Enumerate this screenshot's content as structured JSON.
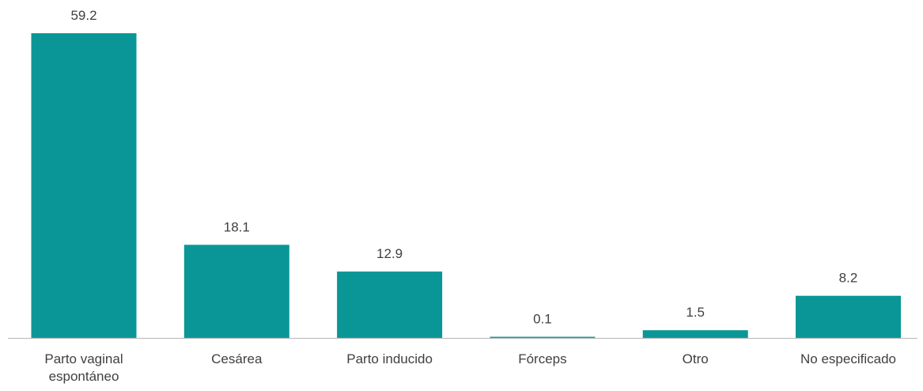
{
  "colors": {
    "bar": "#0a9696",
    "axis": "#bfbfbf",
    "text": "#404040"
  },
  "chart_data": {
    "type": "bar",
    "title": "",
    "xlabel": "",
    "ylabel": "",
    "categories": [
      [
        "Parto vaginal",
        "espontáneo"
      ],
      [
        "Cesárea"
      ],
      [
        "Parto inducido"
      ],
      [
        "Fórceps"
      ],
      [
        "Otro"
      ],
      [
        "No especificado"
      ]
    ],
    "values": [
      59.2,
      18.1,
      12.9,
      0.1,
      1.5,
      8.2
    ],
    "value_labels": [
      "59.2",
      "18.1",
      "12.9",
      "0.1",
      "1.5",
      "8.2"
    ],
    "ylim": [
      0,
      59.2
    ],
    "grid": false,
    "legend": "none"
  }
}
